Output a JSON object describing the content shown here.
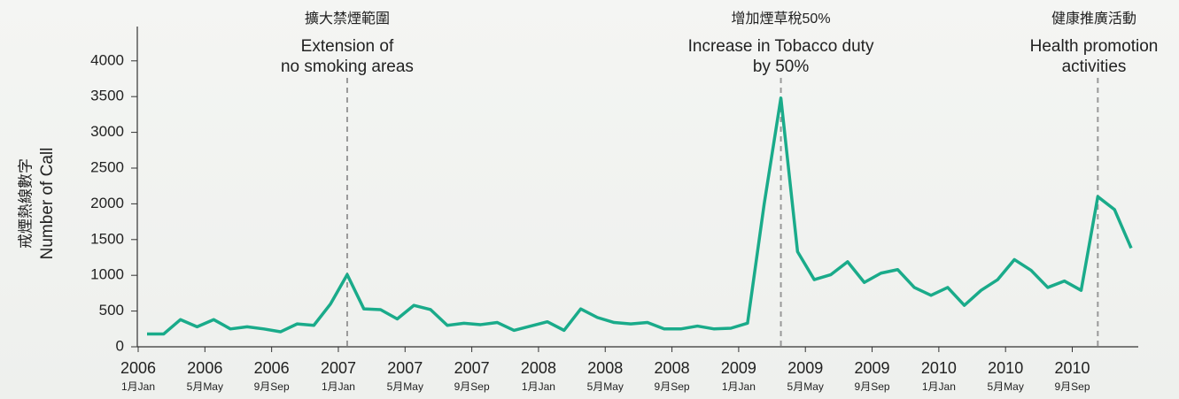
{
  "chart_data": {
    "type": "line",
    "y_label": [
      "戒煙熱線數字",
      "Number of Call"
    ],
    "categories": [
      [
        "2006",
        "1月Jan"
      ],
      null,
      null,
      null,
      [
        "2006",
        "5月May"
      ],
      null,
      null,
      null,
      [
        "2006",
        "9月Sep"
      ],
      null,
      null,
      null,
      [
        "2007",
        "1月Jan"
      ],
      null,
      null,
      null,
      [
        "2007",
        "5月May"
      ],
      null,
      null,
      null,
      [
        "2007",
        "9月Sep"
      ],
      null,
      null,
      null,
      [
        "2008",
        "1月Jan"
      ],
      null,
      null,
      null,
      [
        "2008",
        "5月May"
      ],
      null,
      null,
      null,
      [
        "2008",
        "9月Sep"
      ],
      null,
      null,
      null,
      [
        "2009",
        "1月Jan"
      ],
      null,
      null,
      null,
      [
        "2009",
        "5月May"
      ],
      null,
      null,
      null,
      [
        "2009",
        "9月Sep"
      ],
      null,
      null,
      null,
      [
        "2010",
        "1月Jan"
      ],
      null,
      null,
      null,
      [
        "2010",
        "5月May"
      ],
      null,
      null,
      null,
      [
        "2010",
        "9月Sep"
      ],
      null,
      null,
      null
    ],
    "series": [
      {
        "name": "Number of Call",
        "color": "#1aab8a",
        "values": [
          180,
          180,
          380,
          280,
          380,
          250,
          280,
          250,
          210,
          320,
          300,
          600,
          1010,
          530,
          520,
          390,
          580,
          520,
          300,
          330,
          310,
          340,
          230,
          290,
          350,
          230,
          530,
          410,
          340,
          320,
          340,
          250,
          250,
          290,
          250,
          260,
          330,
          2000,
          3480,
          1330,
          940,
          1010,
          1190,
          900,
          1030,
          1080,
          830,
          720,
          830,
          580,
          790,
          940,
          1220,
          1070,
          830,
          920,
          790,
          2100,
          1920,
          1380
        ]
      }
    ],
    "ylim": [
      0,
      4480
    ],
    "yticks": [
      0,
      500,
      1000,
      1500,
      2000,
      2500,
      3000,
      3500,
      4000
    ],
    "annotations": [
      {
        "index": 12,
        "zh": "擴大禁煙範圍",
        "en": [
          "Extension of",
          "no smoking areas"
        ]
      },
      {
        "index": 38,
        "zh": "增加煙草稅50%",
        "en": [
          "Increase in Tobacco duty",
          "by 50%"
        ]
      },
      {
        "index": 57,
        "zh": "健康推廣活動",
        "en": [
          "Health promotion",
          "activities"
        ]
      }
    ]
  }
}
